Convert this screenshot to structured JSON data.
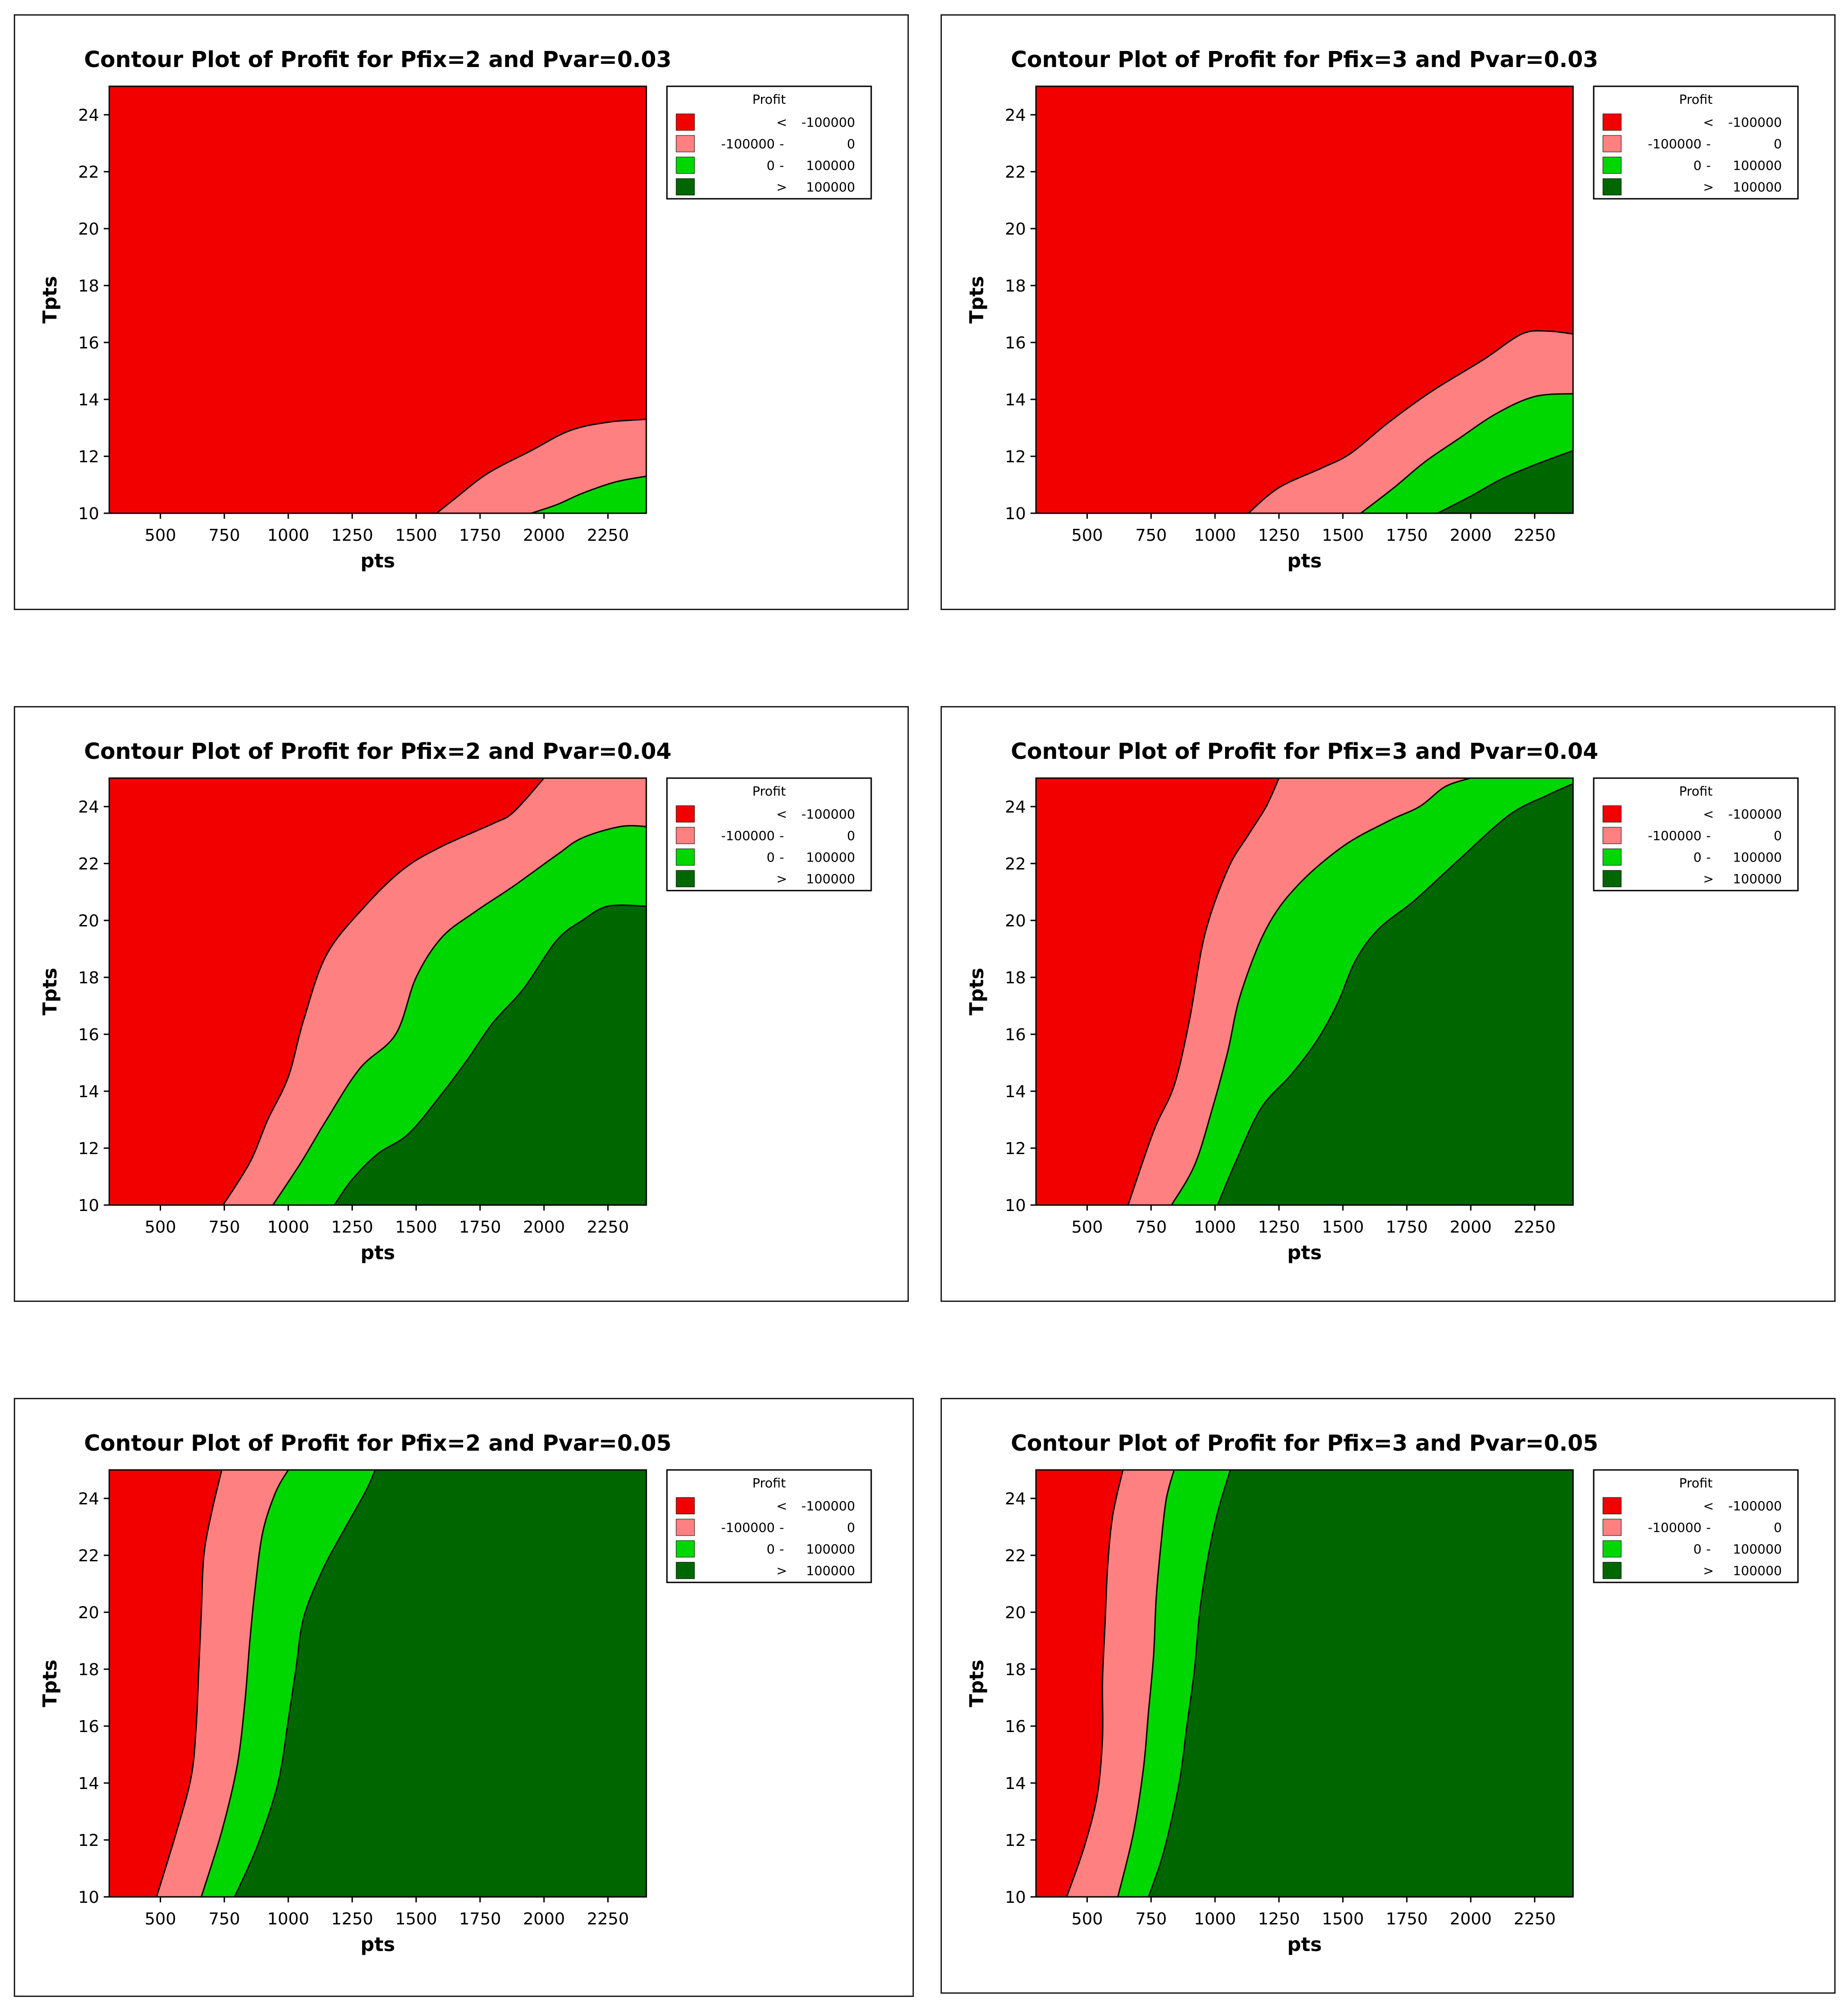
{
  "legend": {
    "title": "Profit",
    "entries": [
      {
        "op": "<",
        "low": "",
        "high": "-100000",
        "color": "#F20000"
      },
      {
        "op": "-",
        "low": "-100000",
        "high": "0",
        "color": "#FF8080"
      },
      {
        "op": "-",
        "low": "0",
        "high": "100000",
        "color": "#00D600"
      },
      {
        "op": ">",
        "low": "",
        "high": "100000",
        "color": "#006600"
      }
    ]
  },
  "chart_data": [
    {
      "type": "contour",
      "title": "Contour Plot of Profit for Pfix=2 and Pvar=0.03",
      "xlabel": "pts",
      "ylabel": "Tpts",
      "xlim": [
        300,
        2400
      ],
      "ylim": [
        10,
        25
      ],
      "xticks": [
        500,
        750,
        1000,
        1250,
        1500,
        1750,
        2000,
        2250
      ],
      "yticks": [
        10,
        12,
        14,
        16,
        18,
        20,
        22,
        24
      ],
      "boundaries": [
        {
          "level": -100000,
          "points": [
            [
              1580,
              10
            ],
            [
              1650,
              10.5
            ],
            [
              1780,
              11.4
            ],
            [
              1950,
              12.2
            ],
            [
              2100,
              12.9
            ],
            [
              2250,
              13.2
            ],
            [
              2400,
              13.3
            ]
          ]
        },
        {
          "level": 0,
          "points": [
            [
              1950,
              10
            ],
            [
              2050,
              10.3
            ],
            [
              2150,
              10.7
            ],
            [
              2280,
              11.1
            ],
            [
              2400,
              11.3
            ]
          ]
        }
      ]
    },
    {
      "type": "contour",
      "title": "Contour Plot of Profit for Pfix=3 and Pvar=0.03",
      "xlabel": "pts",
      "ylabel": "Tpts",
      "xlim": [
        300,
        2400
      ],
      "ylim": [
        10,
        25
      ],
      "xticks": [
        500,
        750,
        1000,
        1250,
        1500,
        1750,
        2000,
        2250
      ],
      "yticks": [
        10,
        12,
        14,
        16,
        18,
        20,
        22,
        24
      ],
      "boundaries": [
        {
          "level": -100000,
          "points": [
            [
              1130,
              10
            ],
            [
              1250,
              10.9
            ],
            [
              1420,
              11.6
            ],
            [
              1530,
              12.1
            ],
            [
              1680,
              13.2
            ],
            [
              1850,
              14.3
            ],
            [
              2050,
              15.4
            ],
            [
              2200,
              16.3
            ],
            [
              2300,
              16.4
            ],
            [
              2400,
              16.3
            ]
          ]
        },
        {
          "level": 0,
          "points": [
            [
              1570,
              10
            ],
            [
              1700,
              10.9
            ],
            [
              1820,
              11.8
            ],
            [
              1950,
              12.6
            ],
            [
              2100,
              13.5
            ],
            [
              2250,
              14.1
            ],
            [
              2400,
              14.2
            ]
          ]
        },
        {
          "level": 100000,
          "points": [
            [
              1870,
              10
            ],
            [
              2000,
              10.6
            ],
            [
              2120,
              11.2
            ],
            [
              2250,
              11.7
            ],
            [
              2400,
              12.2
            ]
          ]
        }
      ]
    },
    {
      "type": "contour",
      "title": "Contour Plot of Profit for Pfix=2 and Pvar=0.04",
      "xlabel": "pts",
      "ylabel": "Tpts",
      "xlim": [
        300,
        2400
      ],
      "ylim": [
        10,
        25
      ],
      "xticks": [
        500,
        750,
        1000,
        1250,
        1500,
        1750,
        2000,
        2250
      ],
      "yticks": [
        10,
        12,
        14,
        16,
        18,
        20,
        22,
        24
      ],
      "boundaries": [
        {
          "level": -100000,
          "points": [
            [
              745,
              10
            ],
            [
              850,
              11.5
            ],
            [
              920,
              13
            ],
            [
              1000,
              14.5
            ],
            [
              1060,
              16.5
            ],
            [
              1150,
              18.8
            ],
            [
              1300,
              20.5
            ],
            [
              1450,
              21.8
            ],
            [
              1600,
              22.6
            ],
            [
              1800,
              23.4
            ],
            [
              1880,
              23.8
            ],
            [
              2000,
              25
            ]
          ]
        },
        {
          "level": 0,
          "points": [
            [
              940,
              10
            ],
            [
              1050,
              11.5
            ],
            [
              1150,
              13
            ],
            [
              1280,
              14.8
            ],
            [
              1420,
              16
            ],
            [
              1500,
              18
            ],
            [
              1600,
              19.4
            ],
            [
              1730,
              20.3
            ],
            [
              1880,
              21.2
            ],
            [
              2050,
              22.3
            ],
            [
              2150,
              22.9
            ],
            [
              2300,
              23.3
            ],
            [
              2400,
              23.3
            ]
          ]
        },
        {
          "level": 100000,
          "points": [
            [
              1180,
              10
            ],
            [
              1250,
              10.9
            ],
            [
              1350,
              11.8
            ],
            [
              1470,
              12.5
            ],
            [
              1600,
              13.9
            ],
            [
              1700,
              15.1
            ],
            [
              1800,
              16.4
            ],
            [
              1920,
              17.6
            ],
            [
              2050,
              19.3
            ],
            [
              2150,
              20
            ],
            [
              2250,
              20.5
            ],
            [
              2400,
              20.5
            ]
          ]
        }
      ]
    },
    {
      "type": "contour",
      "title": "Contour Plot of Profit for Pfix=3 and Pvar=0.04",
      "xlabel": "pts",
      "ylabel": "Tpts",
      "xlim": [
        300,
        2400
      ],
      "ylim": [
        10,
        25
      ],
      "xticks": [
        500,
        750,
        1000,
        1250,
        1500,
        1750,
        2000,
        2250
      ],
      "yticks": [
        10,
        12,
        14,
        16,
        18,
        20,
        22,
        24
      ],
      "boundaries": [
        {
          "level": -100000,
          "points": [
            [
              660,
              10
            ],
            [
              760,
              12.6
            ],
            [
              840,
              14.2
            ],
            [
              900,
              16.5
            ],
            [
              960,
              19.5
            ],
            [
              1050,
              21.8
            ],
            [
              1130,
              23
            ],
            [
              1200,
              24
            ],
            [
              1250,
              25
            ]
          ]
        },
        {
          "level": 0,
          "points": [
            [
              830,
              10
            ],
            [
              920,
              11.4
            ],
            [
              990,
              13.4
            ],
            [
              1050,
              15.4
            ],
            [
              1100,
              17.4
            ],
            [
              1200,
              19.7
            ],
            [
              1320,
              21.2
            ],
            [
              1500,
              22.6
            ],
            [
              1680,
              23.5
            ],
            [
              1800,
              24
            ],
            [
              1900,
              24.7
            ],
            [
              2000,
              25
            ]
          ]
        },
        {
          "level": 100000,
          "points": [
            [
              1010,
              10
            ],
            [
              1080,
              11.5
            ],
            [
              1180,
              13.4
            ],
            [
              1300,
              14.6
            ],
            [
              1400,
              15.8
            ],
            [
              1480,
              17.1
            ],
            [
              1550,
              18.6
            ],
            [
              1640,
              19.7
            ],
            [
              1780,
              20.7
            ],
            [
              1950,
              22.1
            ],
            [
              2150,
              23.7
            ],
            [
              2300,
              24.4
            ],
            [
              2400,
              24.8
            ]
          ]
        }
      ]
    },
    {
      "type": "contour",
      "title": "Contour Plot of Profit for Pfix=2 and Pvar=0.05",
      "xlabel": "pts",
      "ylabel": "Tpts",
      "xlim": [
        300,
        2400
      ],
      "ylim": [
        10,
        25
      ],
      "xticks": [
        500,
        750,
        1000,
        1250,
        1500,
        1750,
        2000,
        2250
      ],
      "yticks": [
        10,
        12,
        14,
        16,
        18,
        20,
        22,
        24
      ],
      "boundaries": [
        {
          "level": -100000,
          "points": [
            [
              485,
              10
            ],
            [
              560,
              12.2
            ],
            [
              620,
              14.2
            ],
            [
              640,
              16
            ],
            [
              650,
              18
            ],
            [
              660,
              20
            ],
            [
              670,
              22
            ],
            [
              700,
              23.5
            ],
            [
              740,
              25
            ]
          ]
        },
        {
          "level": 0,
          "points": [
            [
              660,
              10
            ],
            [
              740,
              12.3
            ],
            [
              800,
              14.6
            ],
            [
              830,
              16.8
            ],
            [
              850,
              19
            ],
            [
              870,
              20.8
            ],
            [
              900,
              22.8
            ],
            [
              950,
              24.2
            ],
            [
              1000,
              25
            ]
          ]
        },
        {
          "level": 100000,
          "points": [
            [
              790,
              10
            ],
            [
              880,
              11.8
            ],
            [
              960,
              14
            ],
            [
              1000,
              16.2
            ],
            [
              1030,
              18
            ],
            [
              1060,
              19.8
            ],
            [
              1130,
              21.4
            ],
            [
              1200,
              22.6
            ],
            [
              1300,
              24.2
            ],
            [
              1340,
              25
            ]
          ]
        }
      ]
    },
    {
      "type": "contour",
      "title": "Contour Plot of Profit for Pfix=3 and Pvar=0.05",
      "xlabel": "pts",
      "ylabel": "Tpts",
      "xlim": [
        300,
        2400
      ],
      "ylim": [
        10,
        25
      ],
      "xticks": [
        500,
        750,
        1000,
        1250,
        1500,
        1750,
        2000,
        2250
      ],
      "yticks": [
        10,
        12,
        14,
        16,
        18,
        20,
        22,
        24
      ],
      "boundaries": [
        {
          "level": -100000,
          "points": [
            [
              420,
              10
            ],
            [
              490,
              11.8
            ],
            [
              540,
              13.6
            ],
            [
              560,
              15.6
            ],
            [
              560,
              17.6
            ],
            [
              570,
              19.6
            ],
            [
              580,
              21.6
            ],
            [
              600,
              23.4
            ],
            [
              640,
              25
            ]
          ]
        },
        {
          "level": 0,
          "points": [
            [
              620,
              10
            ],
            [
              680,
              12.2
            ],
            [
              720,
              14.5
            ],
            [
              740,
              16.5
            ],
            [
              760,
              18.5
            ],
            [
              770,
              20.5
            ],
            [
              790,
              22.5
            ],
            [
              810,
              24
            ],
            [
              840,
              25
            ]
          ]
        },
        {
          "level": 100000,
          "points": [
            [
              740,
              10
            ],
            [
              800,
              11.6
            ],
            [
              860,
              14
            ],
            [
              890,
              16
            ],
            [
              920,
              18
            ],
            [
              940,
              20
            ],
            [
              970,
              21.8
            ],
            [
              1010,
              23.5
            ],
            [
              1060,
              25
            ]
          ]
        }
      ]
    }
  ]
}
